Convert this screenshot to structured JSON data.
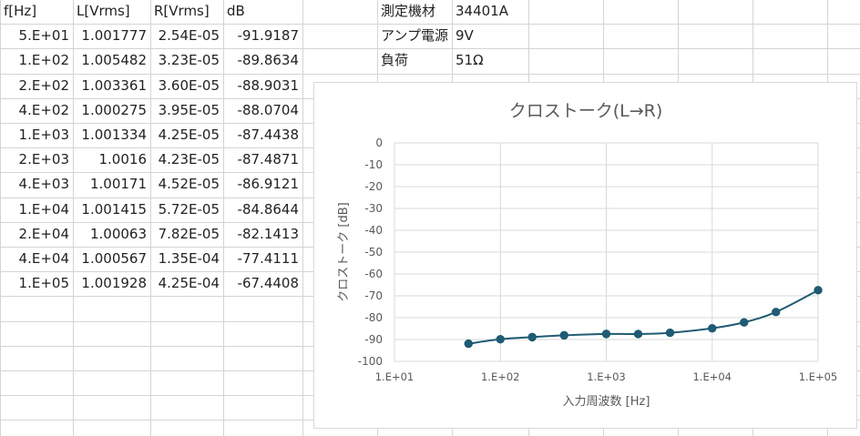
{
  "headers": [
    "f[Hz]",
    "L[Vrms]",
    "R[Vrms]",
    "dB"
  ],
  "rows": [
    [
      "5.E+01",
      "1.001777",
      "2.54E-05",
      "-91.9187"
    ],
    [
      "1.E+02",
      "1.005482",
      "3.23E-05",
      "-89.8634"
    ],
    [
      "2.E+02",
      "1.003361",
      "3.60E-05",
      "-88.9031"
    ],
    [
      "4.E+02",
      "1.000275",
      "3.95E-05",
      "-88.0704"
    ],
    [
      "1.E+03",
      "1.001334",
      "4.25E-05",
      "-87.4438"
    ],
    [
      "2.E+03",
      "1.0016",
      "4.23E-05",
      "-87.4871"
    ],
    [
      "4.E+03",
      "1.00171",
      "4.52E-05",
      "-86.9121"
    ],
    [
      "1.E+04",
      "1.001415",
      "5.72E-05",
      "-84.8644"
    ],
    [
      "2.E+04",
      "1.00063",
      "7.82E-05",
      "-82.1413"
    ],
    [
      "4.E+04",
      "1.000567",
      "1.35E-04",
      "-77.4111"
    ],
    [
      "1.E+05",
      "1.001928",
      "4.25E-04",
      "-67.4408"
    ]
  ],
  "info": [
    {
      "label": "測定機材",
      "value": "34401A"
    },
    {
      "label": "アンプ電源",
      "value": "9V"
    },
    {
      "label": "負荷",
      "value": "51Ω"
    }
  ],
  "colors": {
    "series": "#1f5b73",
    "grid": "#d9d9d9",
    "axis_text": "#595959"
  },
  "chart_data": {
    "type": "scatter",
    "title": "クロストーク(L→R)",
    "xlabel": "入力周波数 [Hz]",
    "ylabel": "クロストーク [dB]",
    "x_scale": "log",
    "xlim": [
      10,
      100000
    ],
    "ylim": [
      -100,
      0
    ],
    "x_ticks": [
      10,
      100,
      1000,
      10000,
      100000
    ],
    "x_tick_labels": [
      "1.E+01",
      "1.E+02",
      "1.E+03",
      "1.E+04",
      "1.E+05"
    ],
    "y_ticks": [
      0,
      -10,
      -20,
      -30,
      -40,
      -50,
      -60,
      -70,
      -80,
      -90,
      -100
    ],
    "y_tick_labels": [
      "0",
      "-10",
      "-20",
      "-30",
      "-40",
      "-50",
      "-60",
      "-70",
      "-80",
      "-90",
      "-100"
    ],
    "grid": true,
    "smooth_line": true,
    "series": [
      {
        "x": [
          50,
          100,
          200,
          400,
          1000,
          2000,
          4000,
          10000,
          20000,
          40000,
          100000
        ],
        "y": [
          -91.9187,
          -89.8634,
          -88.9031,
          -88.0704,
          -87.4438,
          -87.4871,
          -86.9121,
          -84.8644,
          -82.1413,
          -77.4111,
          -67.4408
        ]
      }
    ]
  }
}
